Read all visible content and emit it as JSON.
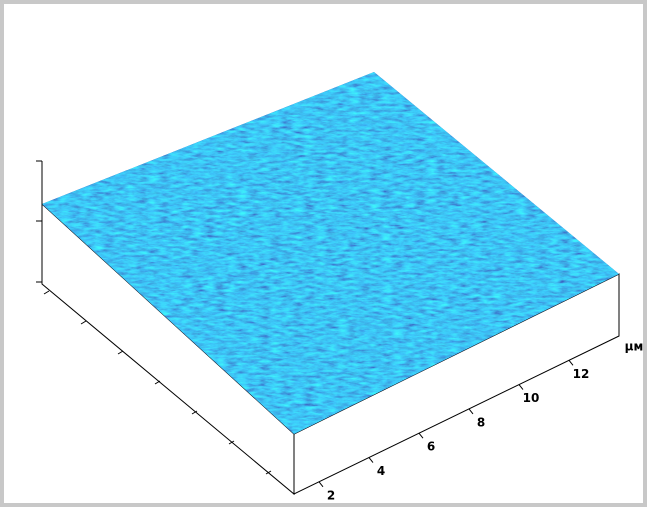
{
  "axis": {
    "unit": "µм",
    "ticks": [
      2,
      4,
      6,
      8,
      10,
      12
    ]
  }
}
